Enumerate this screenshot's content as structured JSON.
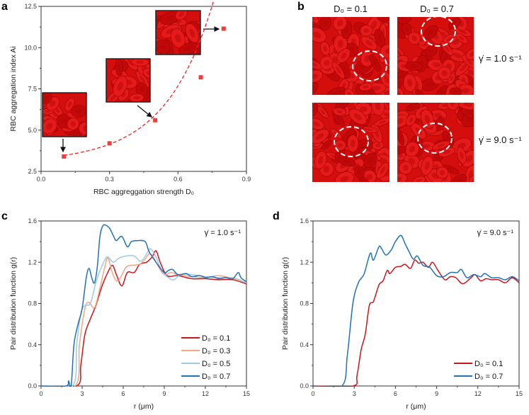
{
  "panels": {
    "a": "a",
    "b": "b",
    "c": "c",
    "d": "d"
  },
  "panel_b": {
    "columns": [
      "D₀ = 0.1",
      "D₀ = 0.7"
    ],
    "rows": [
      "γ̇ = 1.0 s⁻¹",
      "γ̇ = 9.0 s⁻¹"
    ]
  },
  "chart_data": [
    {
      "id": "a",
      "type": "scatter",
      "xlabel": "RBC aggreggation strength  D₀",
      "ylabel": "RBC aggregation index  Ai",
      "xlim": [
        0,
        0.9
      ],
      "ylim": [
        2.5,
        12.5
      ],
      "xticks": [
        "0.0",
        "0.3",
        "0.6",
        "0.9"
      ],
      "xtick_values": [
        0,
        0.3,
        0.6,
        0.9
      ],
      "yticks": [
        "2.5",
        "5.0",
        "7.5",
        "10.0",
        "12.5"
      ],
      "ytick_values": [
        2.5,
        5,
        7.5,
        10,
        12.5
      ],
      "marker_color": "#f03c3c",
      "fit_color": "#e8282a",
      "points": {
        "x": [
          0.1,
          0.3,
          0.5,
          0.7,
          0.8
        ],
        "y": [
          3.4,
          4.2,
          5.6,
          8.2,
          11.15
        ]
      },
      "fit": "exponential (dashed)"
    },
    {
      "id": "c",
      "type": "line",
      "xlabel": "r (μm)",
      "ylabel": "Pair distribution function g(r)",
      "annotation": "γ̇ = 1.0 s⁻¹",
      "xlim": [
        0,
        15
      ],
      "ylim": [
        0,
        1.6
      ],
      "xticks": [
        "0",
        "3",
        "6",
        "9",
        "12",
        "15"
      ],
      "xtick_values": [
        0,
        3,
        6,
        9,
        12,
        15
      ],
      "yticks": [
        "0.0",
        "0.4",
        "0.8",
        "1.2",
        "1.6"
      ],
      "ytick_values": [
        0,
        0.4,
        0.8,
        1.2,
        1.6
      ],
      "legend": "bottom-right",
      "series": [
        {
          "name": "D₀ = 0.1",
          "color": "#c8161d",
          "x": [
            0,
            2.6,
            2.9,
            3.2,
            3.6,
            4.0,
            4.4,
            4.8,
            5.2,
            5.5,
            5.9,
            6.3,
            6.8,
            7.2,
            7.7,
            8.1,
            8.4,
            8.7,
            9.2,
            10,
            11,
            12,
            13,
            14,
            15
          ],
          "y": [
            0,
            0,
            0.2,
            0.5,
            0.65,
            0.78,
            0.95,
            1.08,
            1.17,
            1.08,
            0.97,
            1.1,
            1.1,
            1.18,
            1.2,
            1.25,
            1.31,
            1.2,
            1.07,
            1.07,
            1.04,
            1.04,
            1.03,
            1.03,
            0.99
          ]
        },
        {
          "name": "D₀ = 0.3",
          "color": "#f4a582",
          "x": [
            0,
            2.5,
            2.8,
            3.2,
            3.5,
            3.9,
            4.3,
            4.7,
            4.9,
            5.2,
            5.5,
            5.8,
            6.2,
            6.6,
            7.2,
            7.6,
            7.9,
            8.2,
            8.6,
            9,
            9.5,
            10,
            11,
            12,
            13,
            14,
            15
          ],
          "y": [
            0,
            0,
            0.4,
            0.75,
            0.81,
            0.76,
            0.95,
            1.18,
            1.24,
            1.1,
            1.02,
            1.05,
            1.15,
            1.17,
            1.18,
            1.23,
            1.28,
            1.25,
            1.15,
            1.08,
            1.1,
            1.08,
            1.06,
            1.05,
            1.07,
            1.04,
            1.0
          ]
        },
        {
          "name": "D₀ = 0.5",
          "color": "#9ecae1",
          "x": [
            0,
            2.3,
            2.6,
            2.9,
            3.2,
            3.6,
            4.0,
            4.4,
            4.8,
            5.1,
            5.3,
            5.7,
            6.2,
            6.8,
            7.3,
            7.8,
            8.0,
            8.4,
            8.8,
            9.3,
            9.7,
            10.2,
            11,
            12,
            13,
            14,
            15
          ],
          "y": [
            0,
            0,
            0.4,
            0.7,
            0.78,
            0.8,
            1.0,
            1.15,
            1.25,
            1.22,
            1.2,
            1.24,
            1.26,
            1.26,
            1.21,
            1.3,
            1.33,
            1.25,
            1.12,
            1.05,
            1.03,
            1.08,
            1.08,
            1.06,
            1.05,
            1.05,
            1.0
          ]
        },
        {
          "name": "D₀ = 0.7",
          "color": "#2271b5",
          "x": [
            0,
            1.8,
            2.0,
            2.2,
            2.4,
            2.7,
            3.0,
            3.3,
            3.5,
            3.7,
            3.9,
            4.1,
            4.3,
            4.5,
            4.7,
            5.0,
            5.3,
            5.5,
            5.9,
            6.3,
            6.6,
            7.0,
            7.6,
            7.9,
            8.5,
            9.0,
            9.3,
            9.6,
            10,
            10.6,
            11,
            11.6,
            12,
            12.5,
            13,
            13.5,
            14,
            14.4,
            14.6,
            15
          ],
          "y": [
            0,
            0,
            0.05,
            0,
            0.4,
            0.6,
            0.75,
            1.05,
            1.14,
            1.05,
            1.0,
            1.15,
            1.45,
            1.55,
            1.56,
            1.53,
            1.45,
            1.41,
            1.45,
            1.35,
            1.4,
            1.41,
            1.4,
            1.3,
            1.18,
            1.1,
            1.12,
            1.13,
            1.08,
            1.09,
            1.06,
            1.07,
            1.05,
            1.06,
            1.04,
            1.05,
            1.04,
            1.1,
            1.05,
            1.01
          ]
        }
      ]
    },
    {
      "id": "d",
      "type": "line",
      "xlabel": "r (μm)",
      "ylabel": "Pair distribution function g(r)",
      "annotation": "γ̇ = 9.0 s⁻¹",
      "xlim": [
        0,
        15
      ],
      "ylim": [
        0,
        1.6
      ],
      "xticks": [
        "0",
        "3",
        "6",
        "9",
        "12",
        "15"
      ],
      "xtick_values": [
        0,
        3,
        6,
        9,
        12,
        15
      ],
      "yticks": [
        "0.0",
        "0.4",
        "0.8",
        "1.2",
        "1.6"
      ],
      "ytick_values": [
        0,
        0.4,
        0.8,
        1.2,
        1.6
      ],
      "legend": "bottom-right",
      "series": [
        {
          "name": "D₀ = 0.1",
          "color": "#c8161d",
          "x": [
            0,
            2.9,
            3.2,
            3.5,
            3.8,
            4.1,
            4.4,
            4.8,
            5.1,
            5.4,
            5.6,
            6.0,
            6.4,
            6.7,
            7.1,
            7.4,
            7.7,
            8.0,
            8.4,
            8.7,
            9.1,
            9.6,
            10,
            10.4,
            10.9,
            11.5,
            11.8,
            12.2,
            12.6,
            13,
            13.5,
            14,
            14.5,
            15
          ],
          "y": [
            0,
            0,
            0.1,
            0.35,
            0.5,
            0.78,
            0.82,
            0.98,
            1.02,
            1.12,
            1.09,
            1.15,
            1.16,
            1.18,
            1.14,
            1.22,
            1.19,
            1.2,
            1.15,
            1.2,
            1.12,
            1.03,
            1.06,
            1.05,
            0.99,
            1.05,
            1.08,
            1.02,
            1.04,
            1.03,
            1.03,
            1.0,
            1.05,
            1.0
          ]
        },
        {
          "name": "D₀ = 0.7",
          "color": "#2271b5",
          "x": [
            0,
            2.1,
            2.5,
            2.9,
            3.3,
            3.7,
            4.0,
            4.2,
            4.4,
            4.8,
            5.0,
            5.3,
            5.7,
            6.0,
            6.4,
            6.7,
            7.0,
            7.3,
            7.6,
            8.0,
            8.5,
            9.0,
            9.5,
            10,
            10.5,
            10.8,
            11.2,
            11.7,
            12.2,
            12.5,
            13,
            13.5,
            14,
            14.5,
            15
          ],
          "y": [
            0,
            0,
            0.3,
            0.8,
            1.0,
            1.08,
            1.22,
            1.29,
            1.22,
            1.35,
            1.33,
            1.27,
            1.32,
            1.4,
            1.46,
            1.38,
            1.3,
            1.23,
            1.26,
            1.17,
            1.15,
            1.07,
            1.06,
            1.1,
            1.1,
            1.13,
            1.05,
            1.08,
            1.06,
            1.09,
            1.05,
            1.05,
            1.03,
            1.06,
            1.02
          ]
        }
      ]
    }
  ]
}
